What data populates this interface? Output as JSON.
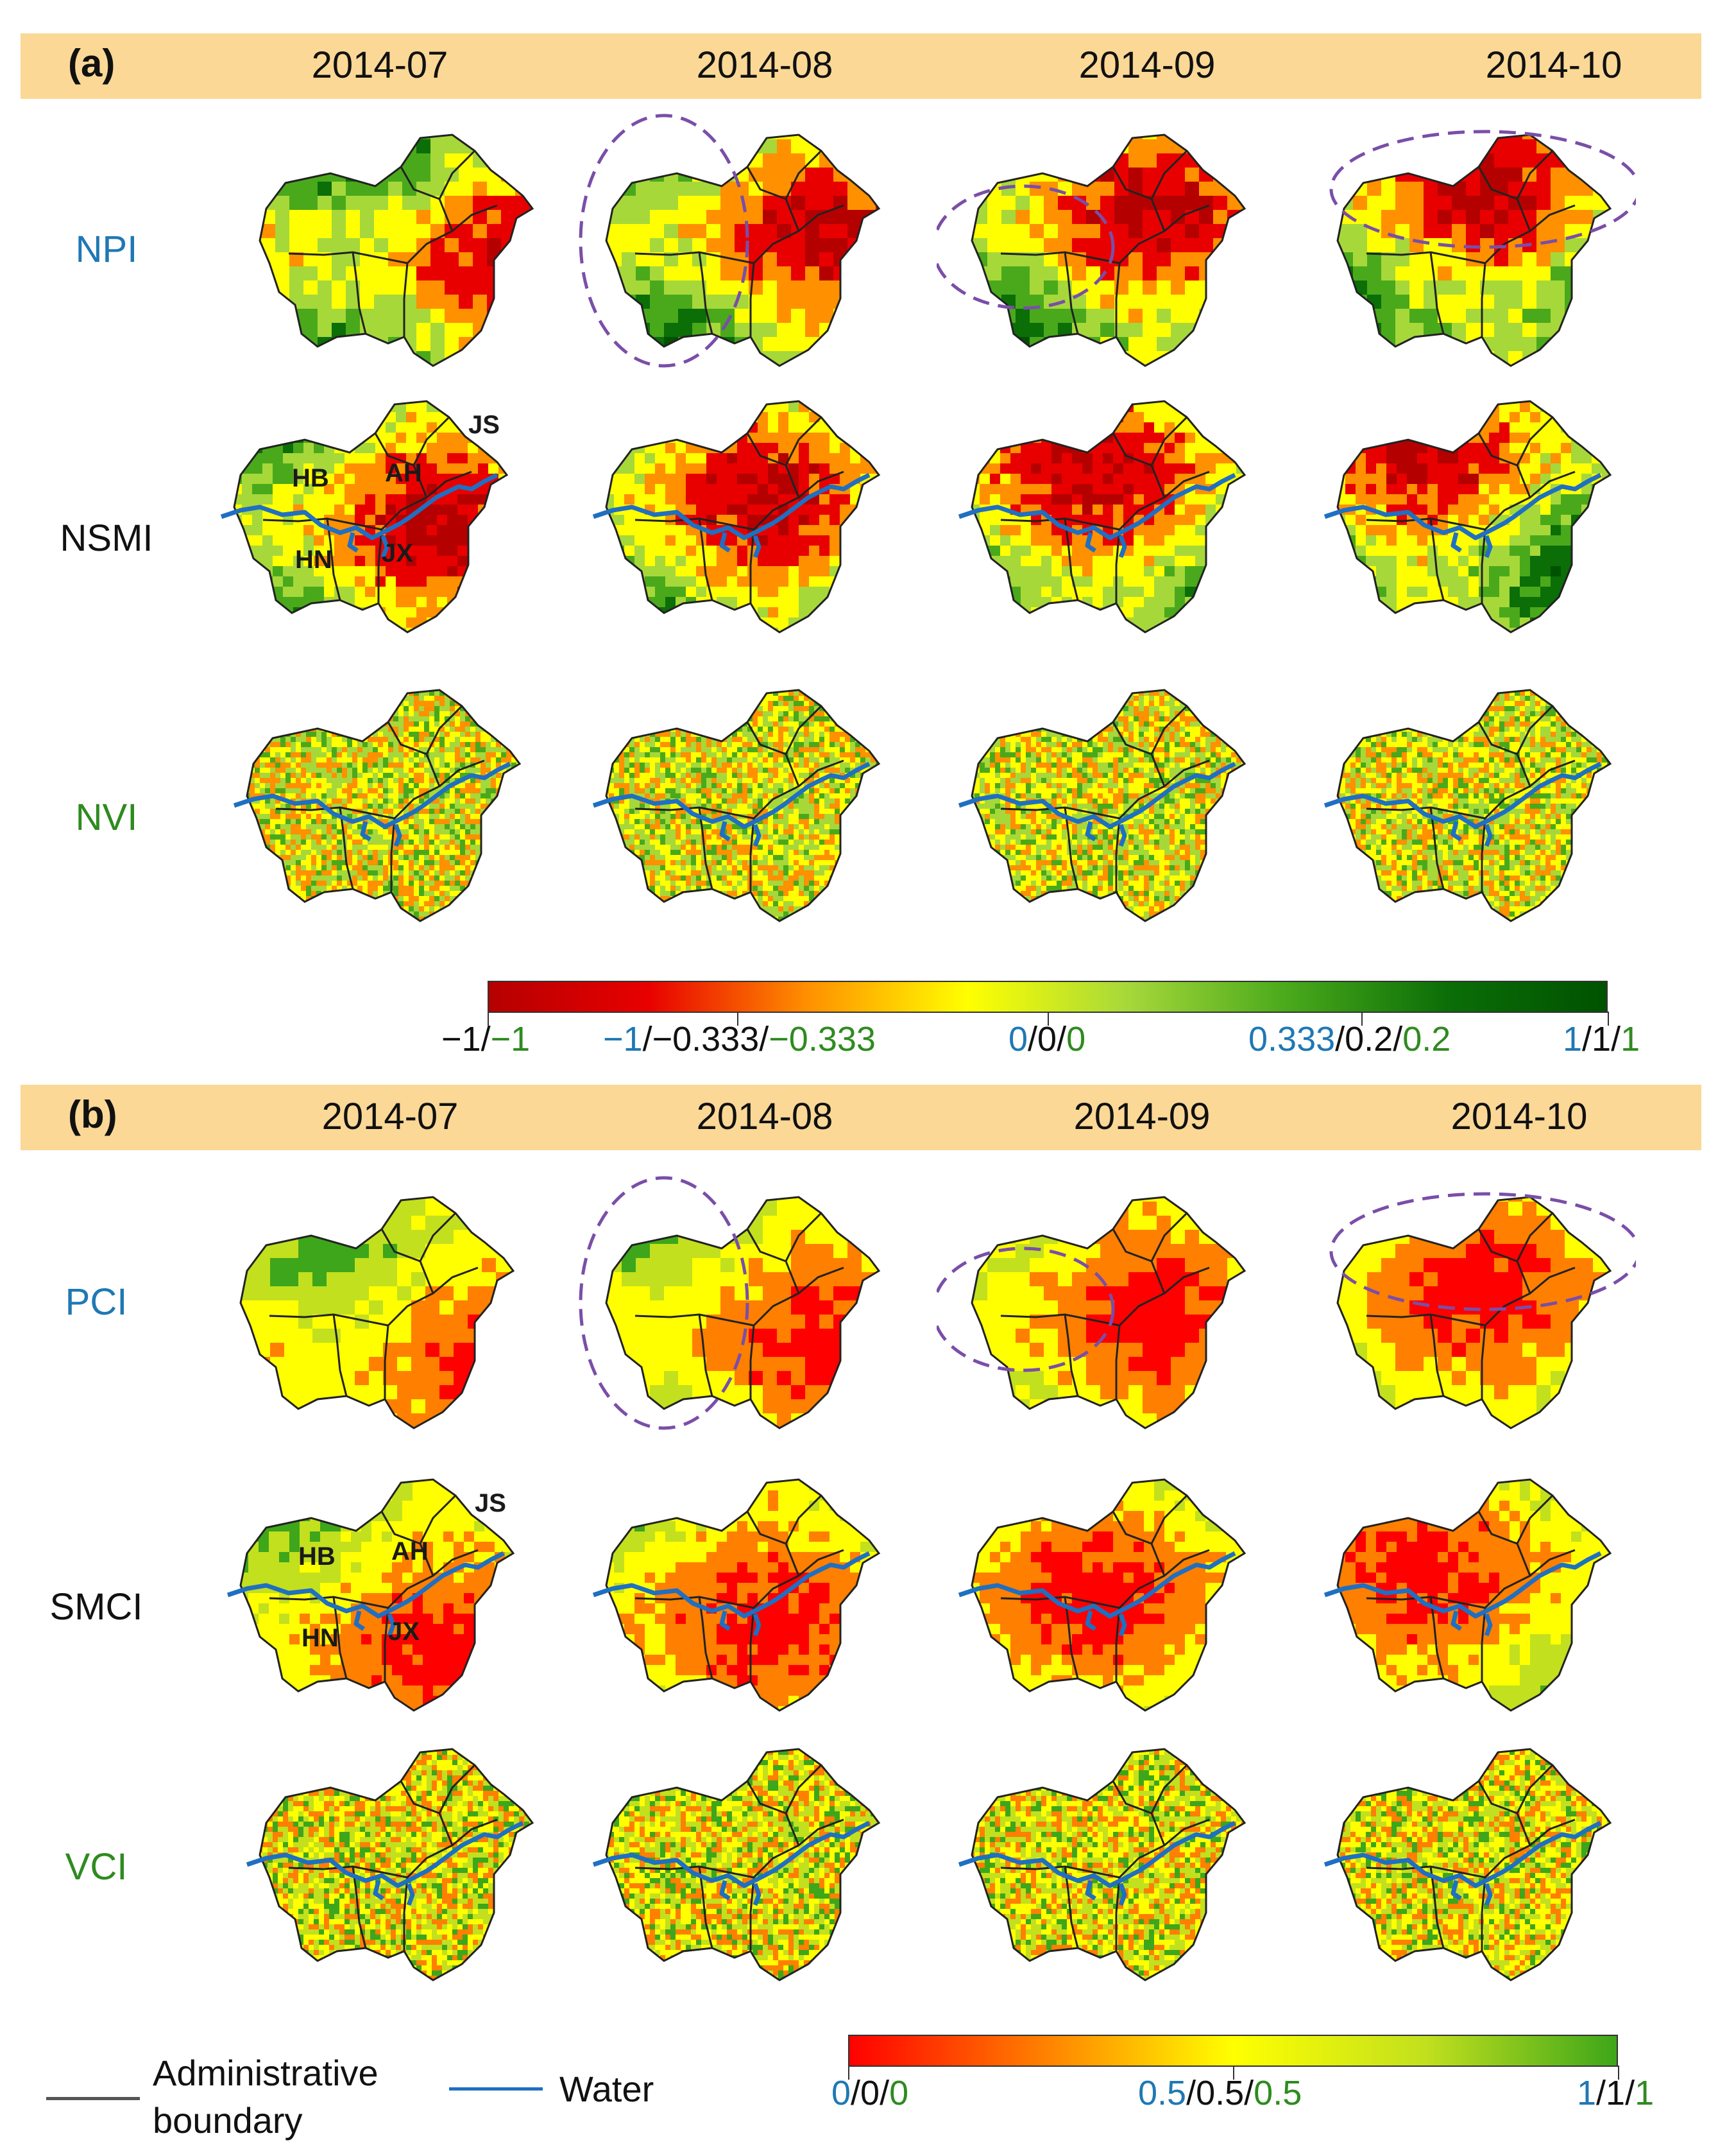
{
  "panels": [
    {
      "id": "a",
      "label": "(a)",
      "dates": [
        "2014-07",
        "2014-08",
        "2014-09",
        "2014-10"
      ],
      "rows": [
        {
          "label": "NPI",
          "color": "#1f78b4"
        },
        {
          "label": "NSMI",
          "color": "#111111"
        },
        {
          "label": "NVI",
          "color": "#2e8b1f"
        }
      ],
      "region_labels": [
        "HB",
        "AH",
        "JS",
        "HN",
        "JX"
      ],
      "colorbar": {
        "colors": [
          "#b50000",
          "#e80000",
          "#ff9000",
          "#ffff00",
          "#a6d83a",
          "#4aa91b",
          "#0b6e07",
          "#005200"
        ],
        "tick_values": [
          "-1",
          "-0.333",
          "0",
          "0.333/0.2",
          "1"
        ],
        "labels": [
          [
            {
              "t": "−1/",
              "c": "#111111"
            },
            {
              "t": "−1",
              "c": "#2e8b1f"
            }
          ],
          [
            {
              "t": "−1",
              "c": "#1f78b4"
            },
            {
              "t": "/−0.333/",
              "c": "#111111"
            },
            {
              "t": "−0.333",
              "c": "#2e8b1f"
            }
          ],
          [
            {
              "t": "0",
              "c": "#1f78b4"
            },
            {
              "t": "/0/",
              "c": "#111111"
            },
            {
              "t": "0",
              "c": "#2e8b1f"
            }
          ],
          [
            {
              "t": "0.333",
              "c": "#1f78b4"
            },
            {
              "t": "/0.2/",
              "c": "#111111"
            },
            {
              "t": "0.2",
              "c": "#2e8b1f"
            }
          ],
          [
            {
              "t": "1",
              "c": "#1f78b4"
            },
            {
              "t": "/1/",
              "c": "#111111"
            },
            {
              "t": "1",
              "c": "#2e8b1f"
            }
          ]
        ]
      }
    },
    {
      "id": "b",
      "label": "(b)",
      "dates": [
        "2014-07",
        "2014-08",
        "2014-09",
        "2014-10"
      ],
      "rows": [
        {
          "label": "PCI",
          "color": "#1f78b4"
        },
        {
          "label": "SMCI",
          "color": "#111111"
        },
        {
          "label": "VCI",
          "color": "#2e8b1f"
        }
      ],
      "region_labels": [
        "HB",
        "AH",
        "JS",
        "HN",
        "JX"
      ],
      "colorbar": {
        "colors": [
          "#ff0000",
          "#ff7f00",
          "#ffff00",
          "#c2e01e",
          "#3ea61a"
        ],
        "tick_values": [
          "0",
          "0.5",
          "1"
        ],
        "labels": [
          [
            {
              "t": "0",
              "c": "#1f78b4"
            },
            {
              "t": "/0/",
              "c": "#111111"
            },
            {
              "t": "0",
              "c": "#2e8b1f"
            }
          ],
          [
            {
              "t": "0.5",
              "c": "#1f78b4"
            },
            {
              "t": "/0.5/",
              "c": "#111111"
            },
            {
              "t": "0.5",
              "c": "#2e8b1f"
            }
          ],
          [
            {
              "t": "1",
              "c": "#1f78b4"
            },
            {
              "t": "/1/",
              "c": "#111111"
            },
            {
              "t": "1",
              "c": "#2e8b1f"
            }
          ]
        ]
      }
    }
  ],
  "legend": {
    "boundary_label": "Administrative boundary",
    "boundary_label_line1": "Administrative",
    "boundary_label_line2": "boundary",
    "water_label": "Water",
    "boundary_color": "#555555",
    "water_color": "#1f6fc2"
  }
}
